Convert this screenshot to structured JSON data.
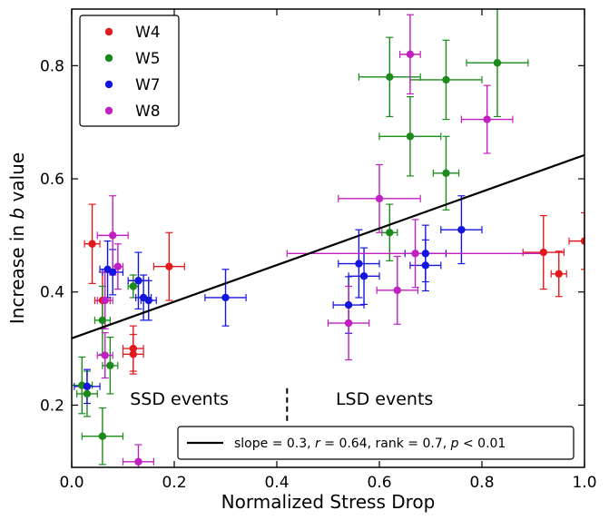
{
  "chart_data": {
    "type": "scatter",
    "xlabel": "Normalized Stress Drop",
    "ylabel_prefix": "Increase in ",
    "ylabel_italic": "b",
    "ylabel_suffix": " value",
    "xlim": [
      0.0,
      1.0
    ],
    "ylim": [
      0.09,
      0.9
    ],
    "x_ticks": [
      0.0,
      0.2,
      0.4,
      0.6,
      0.8,
      1.0
    ],
    "x_tick_labels": [
      "0.0",
      "0.2",
      "0.4",
      "0.6",
      "0.8",
      "1.0"
    ],
    "y_ticks": [
      0.2,
      0.4,
      0.6,
      0.8
    ],
    "y_tick_labels": [
      "0.2",
      "0.4",
      "0.6",
      "0.8"
    ],
    "grid": false,
    "legend_position": "top-left",
    "series": [
      {
        "name": "W4",
        "color": "#e31a1c",
        "points": [
          {
            "x": 0.04,
            "y": 0.485,
            "xerr": 0.015,
            "yerr": 0.07
          },
          {
            "x": 0.06,
            "y": 0.385,
            "xerr": 0.015,
            "yerr": 0.05
          },
          {
            "x": 0.12,
            "y": 0.3,
            "xerr": 0.02,
            "yerr": 0.04
          },
          {
            "x": 0.12,
            "y": 0.29,
            "xerr": 0.02,
            "yerr": 0.035
          },
          {
            "x": 0.19,
            "y": 0.445,
            "xerr": 0.03,
            "yerr": 0.06
          },
          {
            "x": 0.92,
            "y": 0.47,
            "xerr": 0.04,
            "yerr": 0.065
          },
          {
            "x": 0.95,
            "y": 0.432,
            "xerr": 0.015,
            "yerr": 0.04
          },
          {
            "x": 1.0,
            "y": 0.49,
            "xerr": 0.03,
            "yerr": 0.05
          }
        ]
      },
      {
        "name": "W5",
        "color": "#1a8a1a",
        "points": [
          {
            "x": 0.02,
            "y": 0.235,
            "xerr": 0.02,
            "yerr": 0.05
          },
          {
            "x": 0.03,
            "y": 0.22,
            "xerr": 0.02,
            "yerr": 0.04
          },
          {
            "x": 0.06,
            "y": 0.35,
            "xerr": 0.015,
            "yerr": 0.06
          },
          {
            "x": 0.06,
            "y": 0.145,
            "xerr": 0.04,
            "yerr": 0.05
          },
          {
            "x": 0.075,
            "y": 0.27,
            "xerr": 0.015,
            "yerr": 0.05
          },
          {
            "x": 0.12,
            "y": 0.41,
            "xerr": 0.01,
            "yerr": 0.02
          },
          {
            "x": 0.62,
            "y": 0.78,
            "xerr": 0.06,
            "yerr": 0.07
          },
          {
            "x": 0.62,
            "y": 0.505,
            "xerr": 0.015,
            "yerr": 0.05
          },
          {
            "x": 0.66,
            "y": 0.675,
            "xerr": 0.06,
            "yerr": 0.07
          },
          {
            "x": 0.73,
            "y": 0.775,
            "xerr": 0.07,
            "yerr": 0.07
          },
          {
            "x": 0.73,
            "y": 0.61,
            "xerr": 0.025,
            "yerr": 0.065
          },
          {
            "x": 0.83,
            "y": 0.805,
            "xerr": 0.06,
            "yerr": 0.095
          }
        ]
      },
      {
        "name": "W7",
        "color": "#1515e0",
        "points": [
          {
            "x": 0.03,
            "y": 0.233,
            "xerr": 0.025,
            "yerr": 0.03
          },
          {
            "x": 0.07,
            "y": 0.44,
            "xerr": 0.015,
            "yerr": 0.05
          },
          {
            "x": 0.08,
            "y": 0.435,
            "xerr": 0.02,
            "yerr": 0.04
          },
          {
            "x": 0.13,
            "y": 0.42,
            "xerr": 0.02,
            "yerr": 0.05
          },
          {
            "x": 0.14,
            "y": 0.39,
            "xerr": 0.015,
            "yerr": 0.04
          },
          {
            "x": 0.15,
            "y": 0.385,
            "xerr": 0.015,
            "yerr": 0.035
          },
          {
            "x": 0.3,
            "y": 0.39,
            "xerr": 0.04,
            "yerr": 0.05
          },
          {
            "x": 0.54,
            "y": 0.377,
            "xerr": 0.03,
            "yerr": 0.05
          },
          {
            "x": 0.56,
            "y": 0.45,
            "xerr": 0.04,
            "yerr": 0.06
          },
          {
            "x": 0.57,
            "y": 0.428,
            "xerr": 0.03,
            "yerr": 0.05
          },
          {
            "x": 0.69,
            "y": 0.468,
            "xerr": 0.04,
            "yerr": 0.05
          },
          {
            "x": 0.69,
            "y": 0.447,
            "xerr": 0.03,
            "yerr": 0.045
          },
          {
            "x": 0.76,
            "y": 0.51,
            "xerr": 0.04,
            "yerr": 0.06
          }
        ]
      },
      {
        "name": "W8",
        "color": "#c020c0",
        "points": [
          {
            "x": 0.065,
            "y": 0.385,
            "xerr": 0.015,
            "yerr": 0.05
          },
          {
            "x": 0.065,
            "y": 0.288,
            "xerr": 0.015,
            "yerr": 0.04
          },
          {
            "x": 0.08,
            "y": 0.5,
            "xerr": 0.03,
            "yerr": 0.07
          },
          {
            "x": 0.09,
            "y": 0.445,
            "xerr": 0.01,
            "yerr": 0.04
          },
          {
            "x": 0.13,
            "y": 0.1,
            "xerr": 0.03,
            "yerr": 0.03
          },
          {
            "x": 0.54,
            "y": 0.345,
            "xerr": 0.04,
            "yerr": 0.065
          },
          {
            "x": 0.6,
            "y": 0.565,
            "xerr": 0.08,
            "yerr": 0.06
          },
          {
            "x": 0.635,
            "y": 0.403,
            "xerr": 0.04,
            "yerr": 0.06
          },
          {
            "x": 0.66,
            "y": 0.82,
            "xerr": 0.02,
            "yerr": 0.07
          },
          {
            "x": 0.67,
            "y": 0.468,
            "xerr": 0.25,
            "yerr": 0.06
          },
          {
            "x": 0.81,
            "y": 0.705,
            "xerr": 0.05,
            "yerr": 0.06
          }
        ]
      }
    ],
    "fit_line": {
      "x": [
        0.0,
        1.0
      ],
      "y": [
        0.318,
        0.642
      ],
      "color": "#000000",
      "legend_parts": [
        {
          "text": "slope = 0.3, ",
          "italic": false
        },
        {
          "text": "r",
          "italic": true
        },
        {
          "text": " = 0.64, rank = 0.7, ",
          "italic": false
        },
        {
          "text": "p",
          "italic": true
        },
        {
          "text": " < 0.01",
          "italic": false
        }
      ]
    },
    "divider": {
      "x": 0.42,
      "y_range": [
        0.17,
        0.23
      ]
    },
    "annotations": [
      {
        "text": "SSD events",
        "x": 0.21,
        "y": 0.21
      },
      {
        "text": "LSD events",
        "x": 0.61,
        "y": 0.21
      }
    ]
  }
}
